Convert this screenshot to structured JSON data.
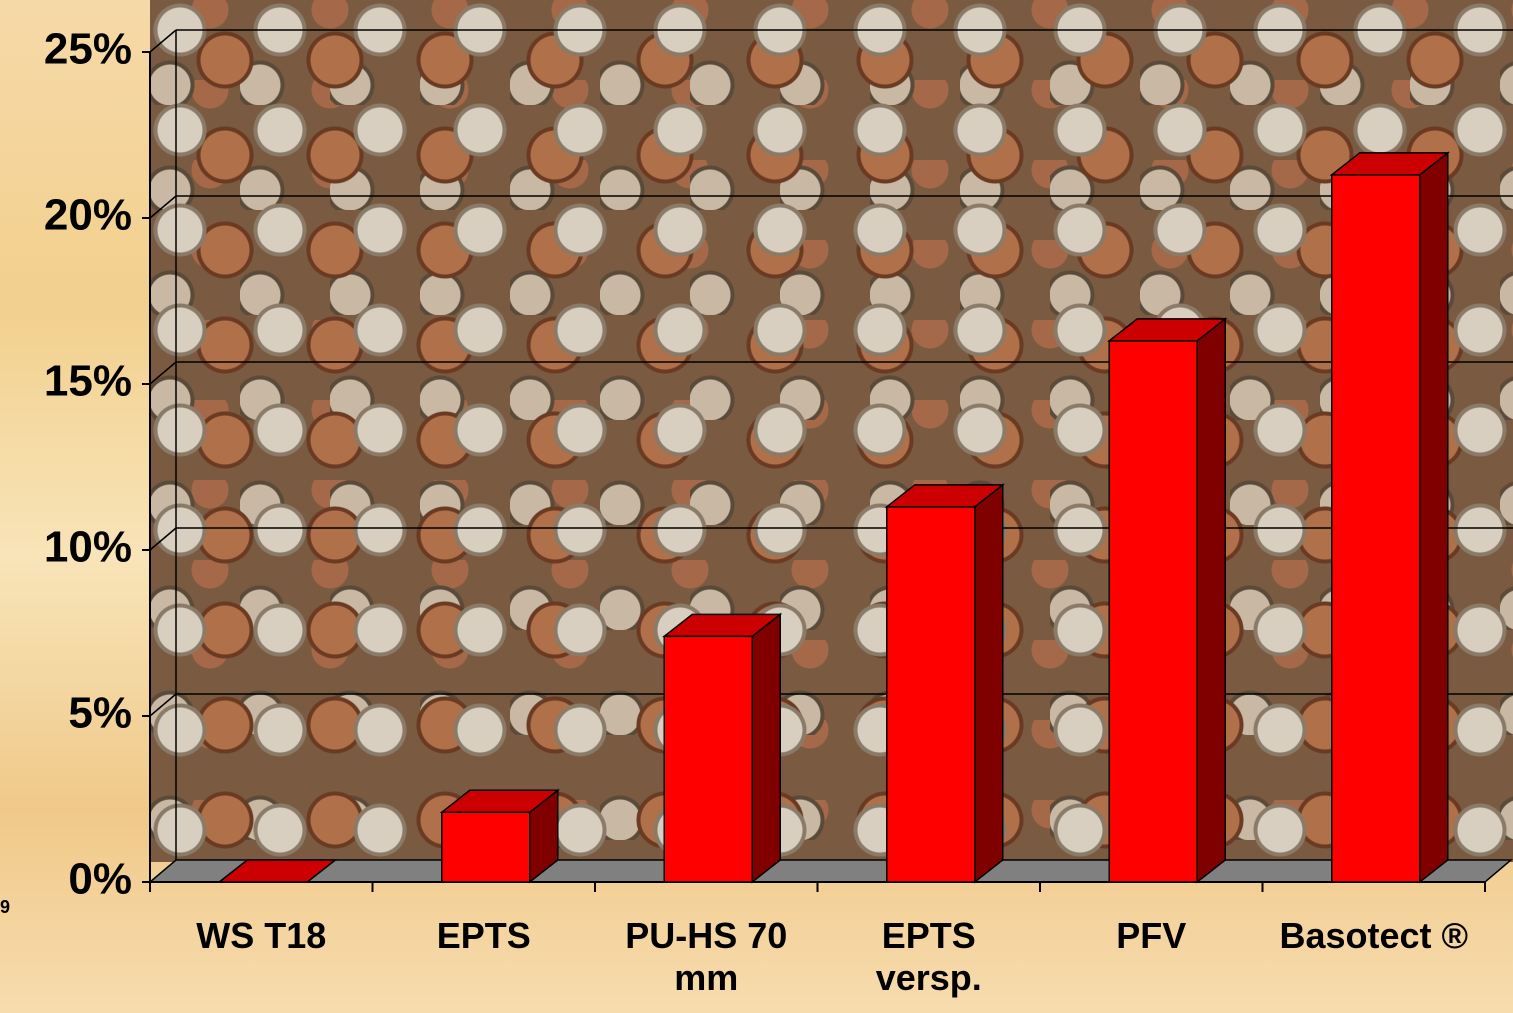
{
  "chart_data": {
    "type": "bar3d",
    "categories": [
      "WS T18",
      "EPTS",
      "PU-HS 70 mm",
      "EPTS versp.",
      "PFV",
      "Basotect ®"
    ],
    "values": [
      0,
      2.1,
      7.4,
      11.3,
      16.3,
      21.3
    ],
    "color": "#ff0000",
    "ylim": [
      0,
      25
    ],
    "yticks": [
      {
        "value": 0,
        "label": "0%"
      },
      {
        "value": 5,
        "label": "5%"
      },
      {
        "value": 10,
        "label": "10%"
      },
      {
        "value": 15,
        "label": "15%"
      },
      {
        "value": 20,
        "label": "20%"
      },
      {
        "value": 25,
        "label": "25%"
      }
    ],
    "grid": true,
    "page_number": "9"
  }
}
